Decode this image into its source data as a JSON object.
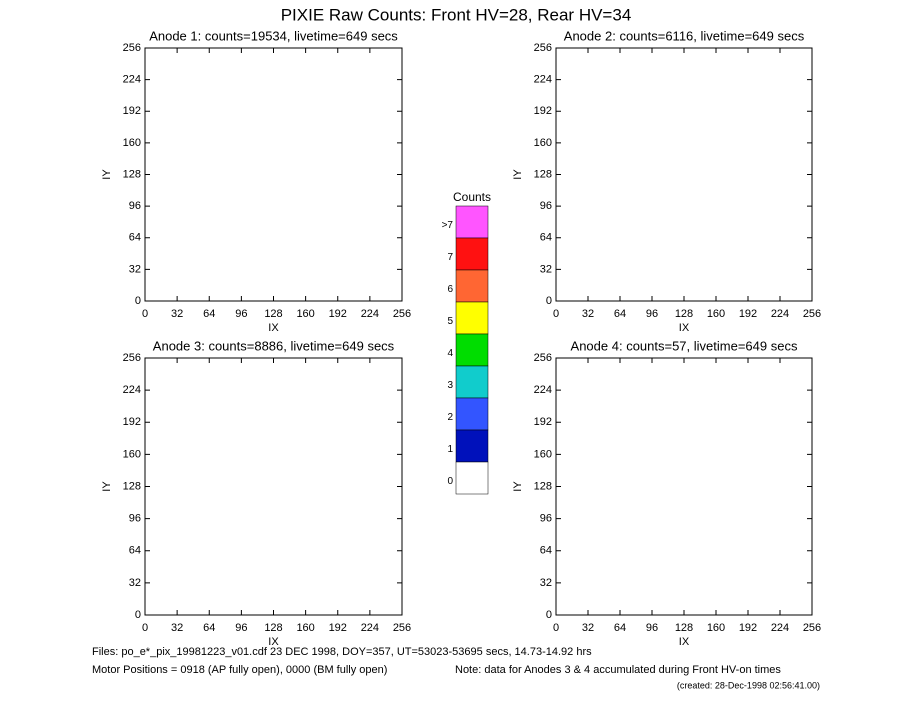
{
  "title": "PIXIE Raw Counts:  Front HV=28, Rear HV=34",
  "chart_data": [
    {
      "type": "image",
      "title": "Anode 1: counts=19534, livetime=649 secs",
      "xlabel": "IX",
      "ylabel": "IY",
      "xlim": [
        0,
        256
      ],
      "ylim": [
        0,
        256
      ],
      "xticks": [
        0,
        32,
        64,
        96,
        128,
        160,
        192,
        224,
        256
      ],
      "yticks": [
        0,
        32,
        64,
        96,
        128,
        160,
        192,
        224,
        256
      ]
    },
    {
      "type": "image",
      "title": "Anode 2: counts=6116, livetime=649 secs",
      "xlabel": "IX",
      "ylabel": "IY",
      "xlim": [
        0,
        256
      ],
      "ylim": [
        0,
        256
      ],
      "xticks": [
        0,
        32,
        64,
        96,
        128,
        160,
        192,
        224,
        256
      ],
      "yticks": [
        0,
        32,
        64,
        96,
        128,
        160,
        192,
        224,
        256
      ]
    },
    {
      "type": "image",
      "title": "Anode 3: counts=8886, livetime=649 secs",
      "xlabel": "IX",
      "ylabel": "IY",
      "xlim": [
        0,
        256
      ],
      "ylim": [
        0,
        256
      ],
      "xticks": [
        0,
        32,
        64,
        96,
        128,
        160,
        192,
        224,
        256
      ],
      "yticks": [
        0,
        32,
        64,
        96,
        128,
        160,
        192,
        224,
        256
      ]
    },
    {
      "type": "image",
      "title": "Anode 4: counts=57, livetime=649 secs",
      "xlabel": "IX",
      "ylabel": "IY",
      "xlim": [
        0,
        256
      ],
      "ylim": [
        0,
        256
      ],
      "xticks": [
        0,
        32,
        64,
        96,
        128,
        160,
        192,
        224,
        256
      ],
      "yticks": [
        0,
        32,
        64,
        96,
        128,
        160,
        192,
        224,
        256
      ]
    }
  ],
  "colorbar": {
    "title": "Counts",
    "levels": [
      {
        "label": ">7",
        "color": "#ff55ff"
      },
      {
        "label": "7",
        "color": "#ff1111"
      },
      {
        "label": "6",
        "color": "#ff6633"
      },
      {
        "label": "5",
        "color": "#ffff00"
      },
      {
        "label": "4",
        "color": "#00dd00"
      },
      {
        "label": "3",
        "color": "#11cccc"
      },
      {
        "label": "2",
        "color": "#3355ff"
      },
      {
        "label": "1",
        "color": "#0011bb"
      },
      {
        "label": "0",
        "color": "#ffffff"
      }
    ]
  },
  "footer": {
    "files": "Files: po_e*_pix_19981223_v01.cdf    23 DEC 1998, DOY=357, UT=53023-53695 secs, 14.73-14.92 hrs",
    "motor": "Motor Positions = 0918 (AP fully open), 0000 (BM fully open)",
    "note": "Note: data for Anodes 3 & 4 accumulated during Front HV-on times",
    "created": "(created: 28-Dec-1998 02:56:41.00)"
  }
}
